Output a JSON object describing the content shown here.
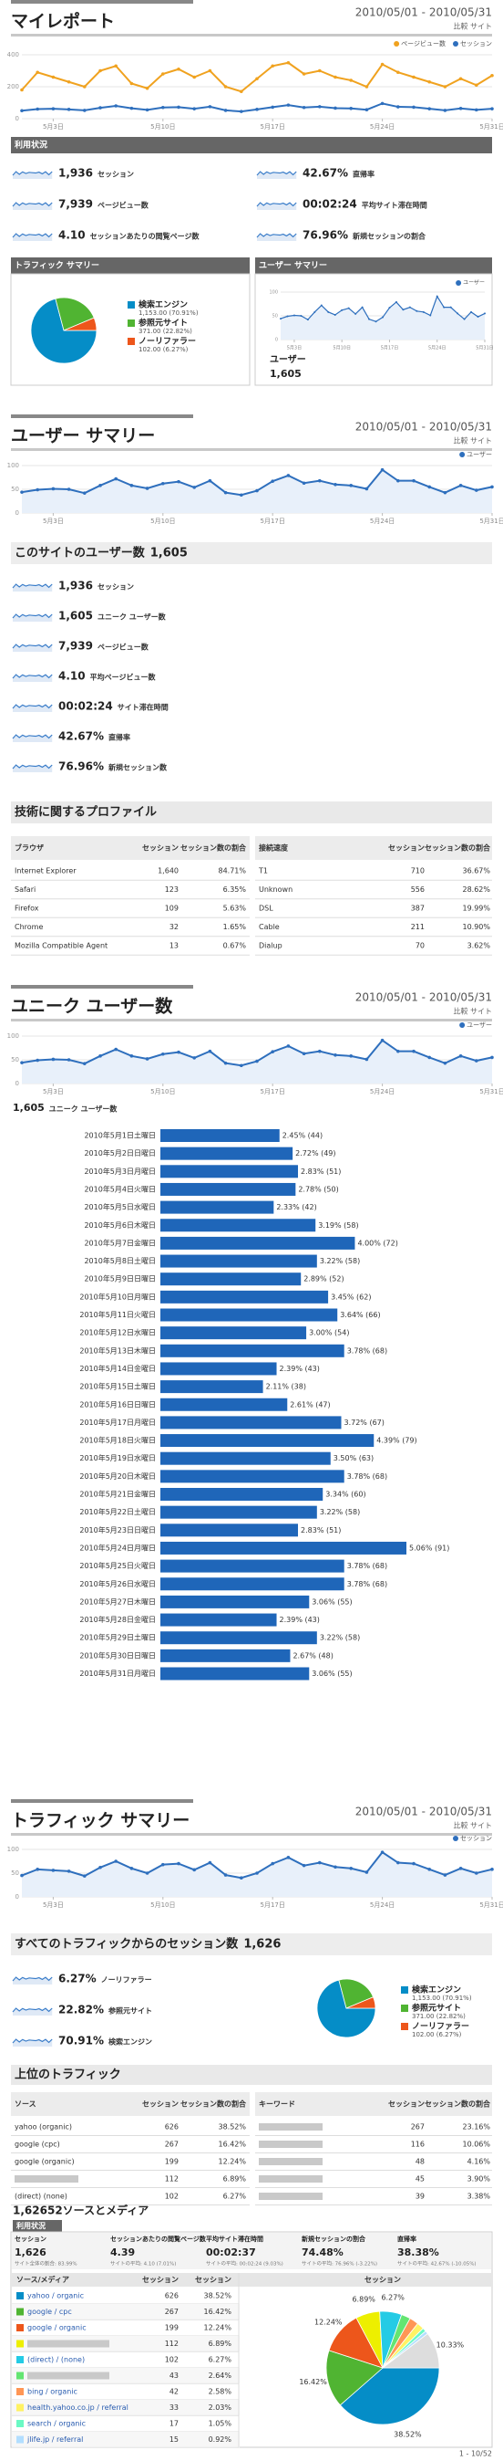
{
  "my_report": {
    "title": "マイレポート",
    "date_range": "2010/05/01 - 2010/05/31",
    "compare": "比較 サイト"
  },
  "usage": {
    "title": "利用状況",
    "stats": [
      {
        "value": "1,936",
        "label": "セッション"
      },
      {
        "value": "42.67%",
        "label": "直帰率"
      },
      {
        "value": "7,939",
        "label": "ページビュー数"
      },
      {
        "value": "00:02:24",
        "label": "平均サイト滞在時間"
      },
      {
        "value": "4.10",
        "label": "セッションあたりの閲覧ページ数"
      },
      {
        "value": "76.96%",
        "label": "新規セッションの割合"
      }
    ]
  },
  "traffic_box": {
    "title": "トラフィック サマリー"
  },
  "user_box": {
    "title": "ユーザー サマリー",
    "label": "ユーザー",
    "value": "1,605"
  },
  "user_summary": {
    "title": "ユーザー サマリー",
    "date_range": "2010/05/01 - 2010/05/31",
    "compare": "比較 サイト",
    "heading": "このサイトのユーザー数",
    "heading_value": "1,605",
    "stats": [
      {
        "value": "1,936",
        "label": "セッション"
      },
      {
        "value": "1,605",
        "label": "ユニーク ユーザー数"
      },
      {
        "value": "7,939",
        "label": "ページビュー数"
      },
      {
        "value": "4.10",
        "label": "平均ページビュー数"
      },
      {
        "value": "00:02:24",
        "label": "サイト滞在時間"
      },
      {
        "value": "42.67%",
        "label": "直帰率"
      },
      {
        "value": "76.96%",
        "label": "新規セッション数"
      }
    ]
  },
  "tech": {
    "title": "技術に関するプロファイル",
    "browsers": {
      "headers": [
        "ブラウザ",
        "セッション",
        "セッション数の割合"
      ],
      "rows": [
        [
          "Internet Explorer",
          "1,640",
          "84.71%"
        ],
        [
          "Safari",
          "123",
          "6.35%"
        ],
        [
          "Firefox",
          "109",
          "5.63%"
        ],
        [
          "Chrome",
          "32",
          "1.65%"
        ],
        [
          "Mozilla Compatible Agent",
          "13",
          "0.67%"
        ]
      ]
    },
    "connections": {
      "headers": [
        "接続速度",
        "セッション",
        "セッション数の割合"
      ],
      "rows": [
        [
          "T1",
          "710",
          "36.67%"
        ],
        [
          "Unknown",
          "556",
          "28.62%"
        ],
        [
          "DSL",
          "387",
          "19.99%"
        ],
        [
          "Cable",
          "211",
          "10.90%"
        ],
        [
          "Dialup",
          "70",
          "3.62%"
        ]
      ]
    }
  },
  "unique": {
    "title": "ユニーク ユーザー数",
    "date_range": "2010/05/01 - 2010/05/31",
    "compare": "比較 サイト",
    "total": "1,605",
    "total_label": "ユニーク ユーザー数"
  },
  "traffic_summary": {
    "title": "トラフィック サマリー",
    "date_range": "2010/05/01 - 2010/05/31",
    "compare": "比較 サイト",
    "heading": "すべてのトラフィックからのセッション数",
    "heading_value": "1,626",
    "stats": [
      {
        "value": "6.27%",
        "label": "ノーリファラー"
      },
      {
        "value": "22.82%",
        "label": "参照元サイト"
      },
      {
        "value": "70.91%",
        "label": "検索エンジン"
      }
    ]
  },
  "top_traffic": {
    "title": "上位のトラフィック",
    "sources": {
      "headers": [
        "ソース",
        "セッション",
        "セッション数の割合"
      ],
      "rows": [
        [
          "yahoo (organic)",
          "626",
          "38.52%"
        ],
        [
          "google (cpc)",
          "267",
          "16.42%"
        ],
        [
          "google (organic)",
          "199",
          "12.24%"
        ],
        [
          null,
          "112",
          "6.89%"
        ],
        [
          "(direct) (none)",
          "102",
          "6.27%"
        ]
      ]
    },
    "keywords": {
      "headers": [
        "キーワード",
        "セッション",
        "セッション数の割合"
      ],
      "rows": [
        [
          null,
          "267",
          "23.16%"
        ],
        [
          null,
          "116",
          "10.06%"
        ],
        [
          null,
          "48",
          "4.16%"
        ],
        [
          null,
          "45",
          "3.90%"
        ],
        [
          null,
          "39",
          "3.38%"
        ]
      ]
    }
  },
  "source_medium": {
    "count": "1,626",
    "label": "52ソースとメディア",
    "tab": "利用状況",
    "metrics": [
      {
        "title": "セッション",
        "value": "1,626",
        "sub": "サイト全体の割合: 83.99%"
      },
      {
        "title": "セッションあたりの閲覧ページ数",
        "value": "4.39",
        "sub": "サイトの平均: 4.10 (7.01%)"
      },
      {
        "title": "平均サイト滞在時間",
        "value": "00:02:37",
        "sub": "サイトの平均: 00:02:24 (9.03%)"
      },
      {
        "title": "新規セッションの割合",
        "value": "74.48%",
        "sub": "サイトの平均: 76.96% (-3.22%)"
      },
      {
        "title": "直帰率",
        "value": "38.38%",
        "sub": "サイトの平均: 42.67% (-10.05%)"
      }
    ],
    "headers": [
      "ソース/メディア",
      "セッション",
      "セッション",
      "セッション"
    ],
    "rows": [
      [
        "yahoo / organic",
        "626",
        "38.52%"
      ],
      [
        "google / cpc",
        "267",
        "16.42%"
      ],
      [
        "google / organic",
        "199",
        "12.24%"
      ],
      [
        null,
        "112",
        "6.89%"
      ],
      [
        "(direct) / (none)",
        "102",
        "6.27%"
      ],
      [
        null,
        "43",
        "2.64%"
      ],
      [
        "bing / organic",
        "42",
        "2.58%"
      ],
      [
        "health.yahoo.co.jp / referral",
        "33",
        "2.03%"
      ],
      [
        "search / organic",
        "17",
        "1.05%"
      ],
      [
        "jlife.jp / referral",
        "15",
        "0.92%"
      ]
    ]
  },
  "footer": "1 - 10/52",
  "chart_data": [
    {
      "type": "line",
      "legend": "top-right",
      "categories": [
        null,
        null,
        "5月3日",
        null,
        null,
        null,
        null,
        null,
        null,
        "5月10日",
        null,
        null,
        null,
        null,
        null,
        null,
        "5月17日",
        null,
        null,
        null,
        null,
        null,
        null,
        "5月24日",
        null,
        null,
        null,
        null,
        null,
        null,
        "5月31日"
      ],
      "series": [
        {
          "name": "ページビュー数",
          "color": "#f0a21f",
          "values": [
            180,
            290,
            260,
            230,
            200,
            300,
            330,
            220,
            190,
            280,
            310,
            260,
            300,
            200,
            170,
            250,
            330,
            350,
            280,
            300,
            260,
            240,
            200,
            340,
            290,
            260,
            230,
            200,
            250,
            210,
            270
          ]
        },
        {
          "name": "セッション",
          "color": "#2e6fbd",
          "values": [
            50,
            60,
            62,
            58,
            52,
            68,
            80,
            65,
            55,
            70,
            72,
            62,
            75,
            52,
            45,
            58,
            72,
            85,
            70,
            75,
            66,
            64,
            56,
            95,
            74,
            72,
            62,
            52,
            64,
            55,
            62
          ]
        }
      ],
      "ylim": [
        0,
        400
      ],
      "yticks": [
        0,
        200,
        400
      ],
      "grid": true
    },
    {
      "type": "pie",
      "categories": [
        "検索エンジン",
        "参照元サイト",
        "ノーリファラー"
      ],
      "values": [
        70.91,
        22.82,
        6.27
      ],
      "value_labels": [
        "1,153.00 (70.91%)",
        "371.00 (22.82%)",
        "102.00 (6.27%)"
      ],
      "colors": [
        "#058dc7",
        "#50b432",
        "#ed561b"
      ]
    },
    {
      "type": "line",
      "legend": "top-right",
      "categories": [
        null,
        null,
        "5月3日",
        null,
        null,
        null,
        null,
        null,
        null,
        "5月10日",
        null,
        null,
        null,
        null,
        null,
        null,
        "5月17日",
        null,
        null,
        null,
        null,
        null,
        null,
        "5月24日",
        null,
        null,
        null,
        null,
        null,
        null,
        "5月31日"
      ],
      "series": [
        {
          "name": "ユーザー",
          "color": "#2e6fbd",
          "values": [
            44,
            49,
            51,
            50,
            42,
            58,
            72,
            58,
            52,
            62,
            66,
            54,
            68,
            43,
            38,
            47,
            67,
            79,
            63,
            68,
            60,
            58,
            51,
            91,
            68,
            68,
            55,
            43,
            58,
            48,
            55
          ]
        }
      ],
      "ylim": [
        0,
        100
      ],
      "yticks": [
        0,
        50,
        100
      ],
      "grid": true
    },
    {
      "type": "line",
      "legend": "top-right",
      "categories": [
        null,
        null,
        "5月3日",
        null,
        null,
        null,
        null,
        null,
        null,
        "5月10日",
        null,
        null,
        null,
        null,
        null,
        null,
        "5月17日",
        null,
        null,
        null,
        null,
        null,
        null,
        "5月24日",
        null,
        null,
        null,
        null,
        null,
        null,
        "5月31日"
      ],
      "series": [
        {
          "name": "ユーザー",
          "color": "#2e6fbd",
          "values": [
            44,
            49,
            51,
            50,
            42,
            58,
            72,
            58,
            52,
            62,
            66,
            54,
            68,
            43,
            38,
            47,
            67,
            79,
            63,
            68,
            60,
            58,
            51,
            91,
            68,
            68,
            55,
            43,
            58,
            48,
            55
          ]
        }
      ],
      "ylim": [
        0,
        100
      ],
      "yticks": [
        0,
        50,
        100
      ],
      "grid": true
    },
    {
      "type": "line",
      "legend": "top-right",
      "categories": [
        null,
        null,
        "5月3日",
        null,
        null,
        null,
        null,
        null,
        null,
        "5月10日",
        null,
        null,
        null,
        null,
        null,
        null,
        "5月17日",
        null,
        null,
        null,
        null,
        null,
        null,
        "5月24日",
        null,
        null,
        null,
        null,
        null,
        null,
        "5月31日"
      ],
      "series": [
        {
          "name": "ユーザー",
          "color": "#2e6fbd",
          "values": [
            44,
            49,
            51,
            50,
            42,
            58,
            72,
            58,
            52,
            62,
            66,
            54,
            68,
            43,
            38,
            47,
            67,
            79,
            63,
            68,
            60,
            58,
            51,
            91,
            68,
            68,
            55,
            43,
            58,
            48,
            55
          ]
        }
      ],
      "ylim": [
        0,
        100
      ],
      "yticks": [
        0,
        50,
        100
      ],
      "grid": true
    },
    {
      "type": "bar",
      "horizontal": true,
      "color": "#1f66b9",
      "categories": [
        "2010年5月1日土曜日",
        "2010年5月2日日曜日",
        "2010年5月3日月曜日",
        "2010年5月4日火曜日",
        "2010年5月5日水曜日",
        "2010年5月6日木曜日",
        "2010年5月7日金曜日",
        "2010年5月8日土曜日",
        "2010年5月9日日曜日",
        "2010年5月10日月曜日",
        "2010年5月11日火曜日",
        "2010年5月12日水曜日",
        "2010年5月13日木曜日",
        "2010年5月14日金曜日",
        "2010年5月15日土曜日",
        "2010年5月16日日曜日",
        "2010年5月17日月曜日",
        "2010年5月18日火曜日",
        "2010年5月19日水曜日",
        "2010年5月20日木曜日",
        "2010年5月21日金曜日",
        "2010年5月22日土曜日",
        "2010年5月23日日曜日",
        "2010年5月24日月曜日",
        "2010年5月25日火曜日",
        "2010年5月26日水曜日",
        "2010年5月27日木曜日",
        "2010年5月28日金曜日",
        "2010年5月29日土曜日",
        "2010年5月30日日曜日",
        "2010年5月31日月曜日"
      ],
      "values": [
        2.45,
        2.72,
        2.83,
        2.78,
        2.33,
        3.19,
        4.0,
        3.22,
        2.89,
        3.45,
        3.64,
        3.0,
        3.78,
        2.39,
        2.11,
        2.61,
        3.72,
        4.39,
        3.5,
        3.78,
        3.34,
        3.22,
        2.83,
        5.06,
        3.78,
        3.78,
        3.06,
        2.39,
        3.22,
        2.67,
        3.06
      ],
      "value_labels": [
        "2.45% (44)",
        "2.72% (49)",
        "2.83% (51)",
        "2.78% (50)",
        "2.33% (42)",
        "3.19% (58)",
        "4.00% (72)",
        "3.22% (58)",
        "2.89% (52)",
        "3.45% (62)",
        "3.64% (66)",
        "3.00% (54)",
        "3.78% (68)",
        "2.39% (43)",
        "2.11% (38)",
        "2.61% (47)",
        "3.72% (67)",
        "4.39% (79)",
        "3.50% (63)",
        "3.78% (68)",
        "3.34% (60)",
        "3.22% (58)",
        "2.83% (51)",
        "5.06% (91)",
        "3.78% (68)",
        "3.78% (68)",
        "3.06% (55)",
        "2.39% (43)",
        "3.22% (58)",
        "2.67% (48)",
        "3.06% (55)"
      ]
    },
    {
      "type": "line",
      "legend": "top-right",
      "categories": [
        null,
        null,
        "5月3日",
        null,
        null,
        null,
        null,
        null,
        null,
        "5月10日",
        null,
        null,
        null,
        null,
        null,
        null,
        "5月17日",
        null,
        null,
        null,
        null,
        null,
        null,
        "5月24日",
        null,
        null,
        null,
        null,
        null,
        null,
        "5月31日"
      ],
      "series": [
        {
          "name": "セッション",
          "color": "#2e6fbd",
          "values": [
            45,
            58,
            56,
            54,
            44,
            62,
            75,
            60,
            50,
            68,
            70,
            57,
            72,
            46,
            40,
            50,
            70,
            83,
            66,
            72,
            63,
            60,
            52,
            94,
            72,
            70,
            58,
            46,
            60,
            50,
            58
          ]
        }
      ],
      "ylim": [
        0,
        100
      ],
      "yticks": [
        0,
        50,
        100
      ],
      "grid": true
    },
    {
      "type": "pie",
      "categories": [
        "検索エンジン",
        "参照元サイト",
        "ノーリファラー"
      ],
      "values": [
        70.91,
        22.82,
        6.27
      ],
      "value_labels": [
        "1,153.00 (70.91%)",
        "371.00 (22.82%)",
        "102.00 (6.27%)"
      ],
      "colors": [
        "#058dc7",
        "#50b432",
        "#ed561b"
      ]
    },
    {
      "type": "pie",
      "values": [
        38.52,
        16.42,
        12.24,
        6.89,
        6.27,
        2.64,
        2.58,
        2.03,
        1.05,
        0.92,
        10.33
      ],
      "value_labels": [
        "38.52%",
        "16.42%",
        "12.24%",
        "6.89%",
        "6.27%",
        null,
        null,
        null,
        null,
        null,
        "10.33%"
      ],
      "colors": [
        "#058dc7",
        "#50b432",
        "#ed561b",
        "#edef00",
        "#24cbe5",
        "#64e572",
        "#ff9655",
        "#fff263",
        "#6af9c4",
        "#b2deff",
        "#dddddd"
      ]
    }
  ]
}
